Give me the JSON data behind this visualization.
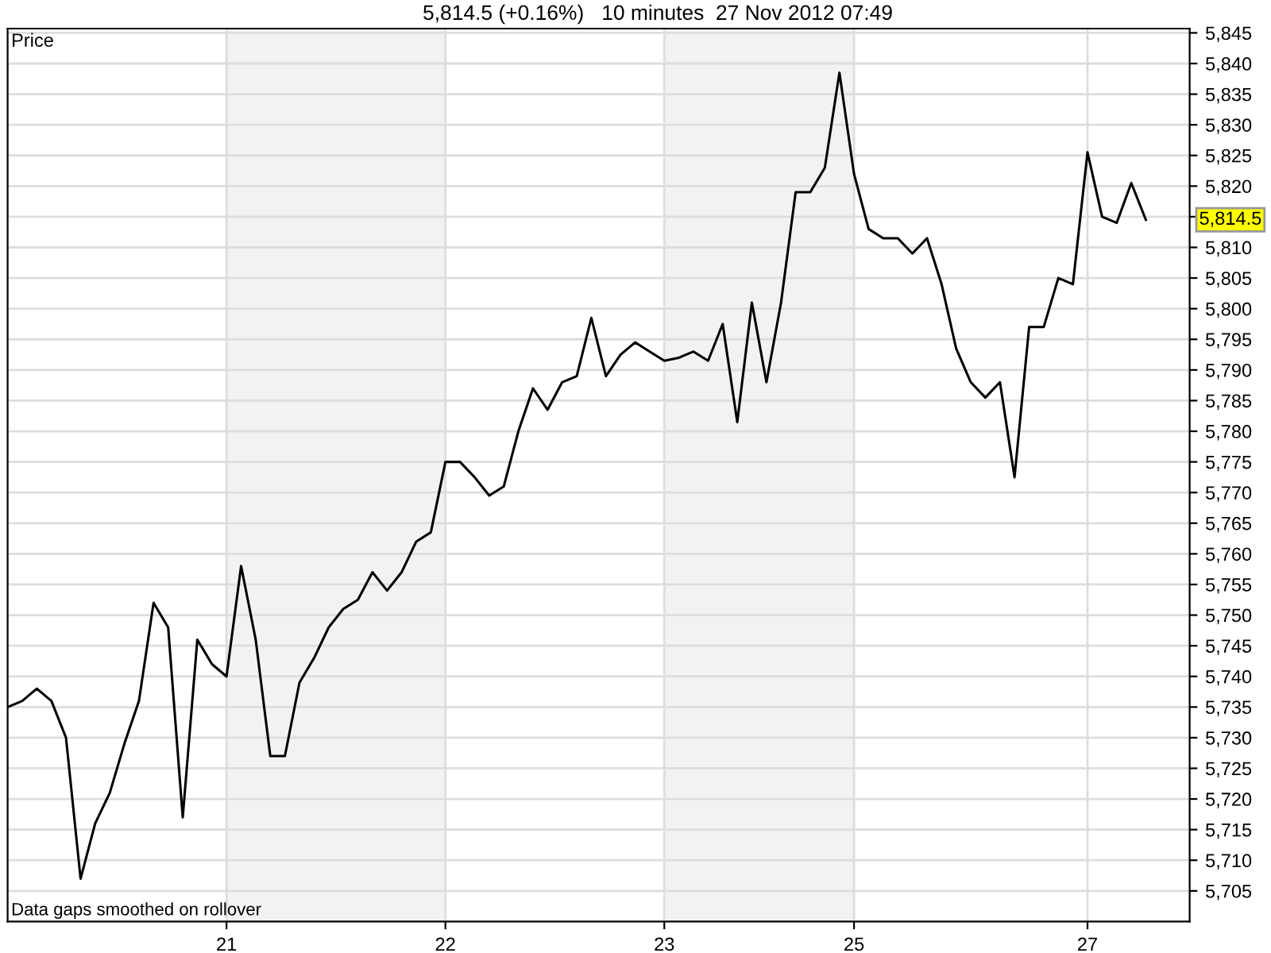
{
  "chart_data": {
    "type": "line",
    "title": "5,814.5 (+0.16%)   10 minutes  27 Nov 2012 07:49",
    "ylabel": "Price",
    "annotations": [
      "5,814.5",
      "Data gaps smoothed on rollover"
    ],
    "categories": [
      null,
      null,
      null,
      null,
      null,
      null,
      null,
      null,
      null,
      null,
      null,
      null,
      null,
      null,
      null,
      "21",
      null,
      null,
      null,
      null,
      null,
      null,
      null,
      null,
      null,
      null,
      null,
      null,
      null,
      null,
      "22",
      null,
      null,
      null,
      null,
      null,
      null,
      null,
      null,
      null,
      null,
      null,
      null,
      null,
      null,
      "23",
      null,
      null,
      null,
      null,
      null,
      null,
      null,
      null,
      null,
      null,
      null,
      null,
      "25",
      null,
      null,
      null,
      null,
      null,
      null,
      null,
      null,
      null,
      null,
      null,
      null,
      null,
      null,
      null,
      "27",
      null,
      null,
      null,
      null,
      null,
      null,
      null
    ],
    "series": [
      {
        "color": "#000000",
        "values": [
          5735,
          5736,
          5738,
          5736,
          5730,
          5707,
          5716,
          5721,
          5729,
          5736,
          5752,
          5748,
          5717,
          5746,
          5742,
          5740,
          5758,
          5746,
          5727,
          5727,
          5739,
          5743,
          5748,
          5751,
          5752.5,
          5757,
          5754,
          5757,
          5762,
          5763.5,
          5775,
          5775,
          5772.5,
          5769.5,
          5771,
          5780,
          5787,
          5783.5,
          5788,
          5789,
          5798.5,
          5789,
          5792.5,
          5794.5,
          5793,
          5791.5,
          5792,
          5793,
          5791.5,
          5797.5,
          5781.5,
          5801,
          5788,
          5801,
          5819,
          5819,
          5823,
          5838.5,
          5822,
          5813,
          5811.5,
          5811.5,
          5809,
          5811.5,
          5804,
          5793.5,
          5788,
          5785.5,
          5788,
          5772.5,
          5797,
          5797,
          5805,
          5804,
          5825.5,
          5815,
          5814,
          5820.5,
          5814.5,
          null,
          null,
          null
        ]
      }
    ],
    "ylim": [
      5700,
      5845.7
    ],
    "yticks": [
      {
        "value": 5705,
        "label": "5,705"
      },
      {
        "value": 5710,
        "label": "5,710"
      },
      {
        "value": 5715,
        "label": "5,715"
      },
      {
        "value": 5720,
        "label": "5,720"
      },
      {
        "value": 5725,
        "label": "5,725"
      },
      {
        "value": 5730,
        "label": "5,730"
      },
      {
        "value": 5735,
        "label": "5,735"
      },
      {
        "value": 5740,
        "label": "5,740"
      },
      {
        "value": 5745,
        "label": "5,745"
      },
      {
        "value": 5750,
        "label": "5,750"
      },
      {
        "value": 5755,
        "label": "5,755"
      },
      {
        "value": 5760,
        "label": "5,760"
      },
      {
        "value": 5765,
        "label": "5,765"
      },
      {
        "value": 5770,
        "label": "5,770"
      },
      {
        "value": 5775,
        "label": "5,775"
      },
      {
        "value": 5780,
        "label": "5,780"
      },
      {
        "value": 5785,
        "label": "5,785"
      },
      {
        "value": 5790,
        "label": "5,790"
      },
      {
        "value": 5795,
        "label": "5,795"
      },
      {
        "value": 5800,
        "label": "5,800"
      },
      {
        "value": 5805,
        "label": "5,805"
      },
      {
        "value": 5810,
        "label": "5,810"
      },
      {
        "value": 5815,
        "label": null
      },
      {
        "value": 5820,
        "label": "5,820"
      },
      {
        "value": 5825,
        "label": "5,825"
      },
      {
        "value": 5830,
        "label": "5,830"
      },
      {
        "value": 5835,
        "label": "5,835"
      },
      {
        "value": 5840,
        "label": "5,840"
      },
      {
        "value": 5845,
        "label": "5,845"
      }
    ],
    "bands": [
      {
        "axis": "x",
        "from": "21",
        "to": "22",
        "color": "#f2f2f2"
      },
      {
        "axis": "x",
        "from": "23",
        "to": "25",
        "color": "#f2f2f2"
      }
    ],
    "grid": true,
    "legend": false,
    "marker": "none",
    "line_style": "solid"
  }
}
